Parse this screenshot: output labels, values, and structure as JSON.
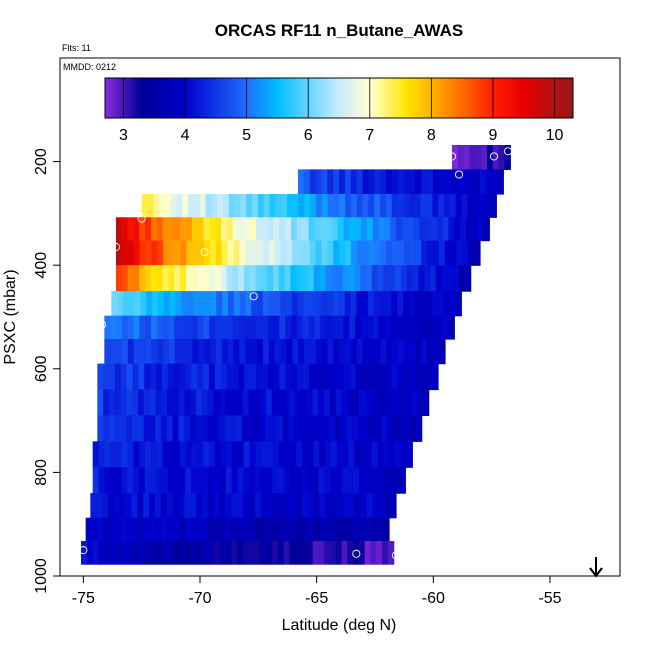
{
  "chart_data": {
    "type": "heatmap",
    "title": "ORCAS RF11 n_Butane_AWAS",
    "flights_label": "Flts: 11",
    "date_label": "MMDD: 0212",
    "xlabel": "Latitude (deg N)",
    "ylabel": "PSXC (mbar)",
    "xlim": [
      -76,
      -52
    ],
    "ylim": [
      1000,
      0
    ],
    "x_ticks": [
      -75,
      -70,
      -65,
      -60,
      -55
    ],
    "y_ticks": [
      200,
      400,
      600,
      800,
      1000
    ],
    "colorbar": {
      "range": [
        2.7,
        10.3
      ],
      "ticks": [
        3,
        4,
        5,
        6,
        7,
        8,
        9,
        10
      ]
    },
    "rows": [
      {
        "p": 190,
        "x0": -59.2,
        "x1": -56.7,
        "v0": 3.0,
        "v1": 3.2
      },
      {
        "p": 240,
        "x0": -65.8,
        "x1": -57.0,
        "v0": 4.8,
        "v1": 3.8
      },
      {
        "p": 285,
        "x0": -72.5,
        "x1": -57.3,
        "v0": 7.6,
        "v1": 3.8
      },
      {
        "p": 330,
        "x0": -73.6,
        "x1": -57.6,
        "v0": 9.8,
        "v1": 3.8
      },
      {
        "p": 375,
        "x0": -73.6,
        "x1": -58.0,
        "v0": 10.0,
        "v1": 3.8
      },
      {
        "p": 425,
        "x0": -73.6,
        "x1": -58.4,
        "v0": 8.8,
        "v1": 3.8
      },
      {
        "p": 475,
        "x0": -73.8,
        "x1": -58.8,
        "v0": 6.0,
        "v1": 3.8
      },
      {
        "p": 520,
        "x0": -74.1,
        "x1": -59.1,
        "v0": 5.2,
        "v1": 3.8
      },
      {
        "p": 565,
        "x0": -74.1,
        "x1": -59.5,
        "v0": 4.7,
        "v1": 3.8
      },
      {
        "p": 615,
        "x0": -74.4,
        "x1": -59.8,
        "v0": 4.6,
        "v1": 3.8
      },
      {
        "p": 665,
        "x0": -74.4,
        "x1": -60.2,
        "v0": 4.5,
        "v1": 3.8
      },
      {
        "p": 715,
        "x0": -74.4,
        "x1": -60.5,
        "v0": 4.4,
        "v1": 3.8
      },
      {
        "p": 765,
        "x0": -74.6,
        "x1": -60.9,
        "v0": 4.3,
        "v1": 3.9
      },
      {
        "p": 815,
        "x0": -74.6,
        "x1": -61.2,
        "v0": 4.2,
        "v1": 3.9
      },
      {
        "p": 865,
        "x0": -74.7,
        "x1": -61.6,
        "v0": 4.1,
        "v1": 3.9
      },
      {
        "p": 910,
        "x0": -74.9,
        "x1": -61.9,
        "v0": 4.0,
        "v1": 3.5
      },
      {
        "p": 955,
        "x0": -75.1,
        "x1": -61.7,
        "v0": 4.0,
        "v1": 3.0
      }
    ],
    "samples": [
      {
        "x": -59.2,
        "y": 190
      },
      {
        "x": -57.4,
        "y": 190
      },
      {
        "x": -56.8,
        "y": 180
      },
      {
        "x": -58.9,
        "y": 225
      },
      {
        "x": -72.5,
        "y": 310
      },
      {
        "x": -73.6,
        "y": 365
      },
      {
        "x": -69.8,
        "y": 375
      },
      {
        "x": -67.7,
        "y": 460
      },
      {
        "x": -74.2,
        "y": 515
      },
      {
        "x": -75.0,
        "y": 950
      },
      {
        "x": -63.3,
        "y": 957
      },
      {
        "x": -61.6,
        "y": 960
      }
    ],
    "marker": "down-arrow"
  }
}
